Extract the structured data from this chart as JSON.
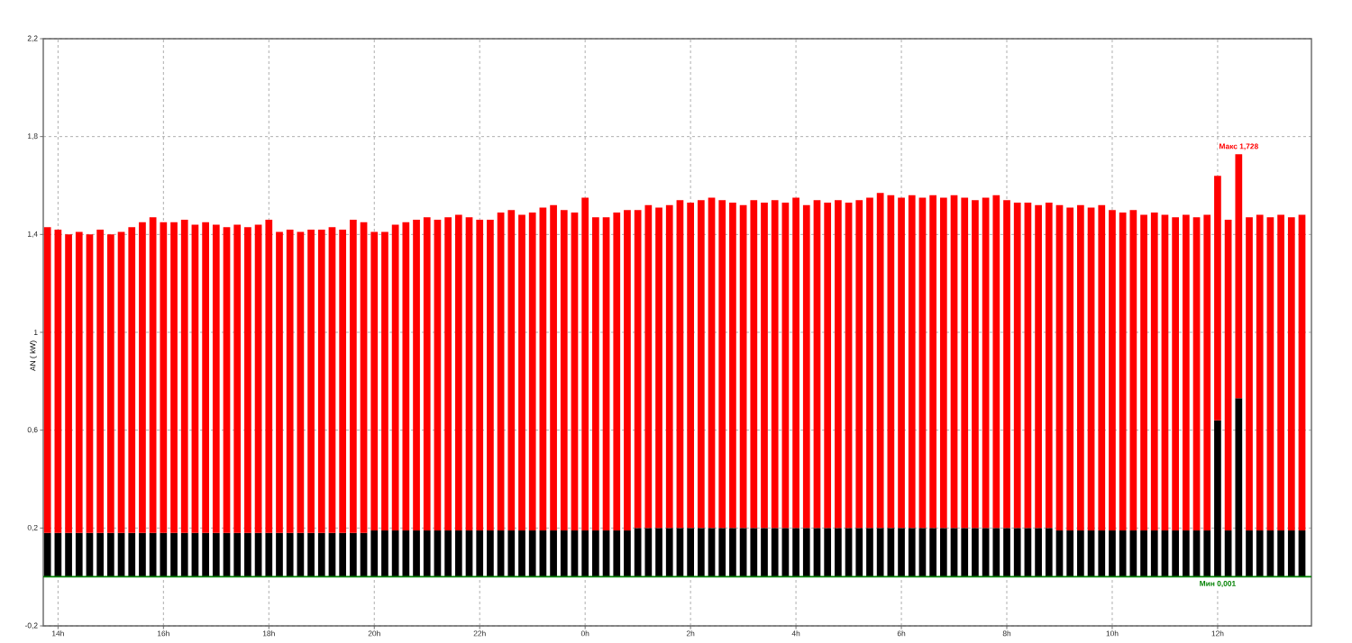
{
  "chart_data": {
    "type": "bar",
    "stacked": true,
    "ylabel": "AN ( kW)",
    "ylim": [
      -0.2,
      2.2
    ],
    "yticks": [
      {
        "value": -0.2,
        "label": "-0,2"
      },
      {
        "value": 0.2,
        "label": "0,2"
      },
      {
        "value": 0.6,
        "label": "0,6"
      },
      1,
      {
        "value": 1.4,
        "label": "1,4"
      },
      {
        "value": 1.8,
        "label": "1,8"
      },
      {
        "value": 2.2,
        "label": "2,2"
      }
    ],
    "grid": true,
    "categories": [
      null,
      "14h",
      null,
      null,
      null,
      null,
      null,
      null,
      null,
      null,
      null,
      "16h",
      null,
      null,
      null,
      null,
      null,
      null,
      null,
      null,
      null,
      "18h",
      null,
      null,
      null,
      null,
      null,
      null,
      null,
      null,
      null,
      "20h",
      null,
      null,
      null,
      null,
      null,
      null,
      null,
      null,
      null,
      "22h",
      null,
      null,
      null,
      null,
      null,
      null,
      null,
      null,
      null,
      "0h",
      null,
      null,
      null,
      null,
      null,
      null,
      null,
      null,
      null,
      "2h",
      null,
      null,
      null,
      null,
      null,
      null,
      null,
      null,
      null,
      "4h",
      null,
      null,
      null,
      null,
      null,
      null,
      null,
      null,
      null,
      "6h",
      null,
      null,
      null,
      null,
      null,
      null,
      null,
      null,
      null,
      "8h",
      null,
      null,
      null,
      null,
      null,
      null,
      null,
      null,
      null,
      "10h",
      null,
      null,
      null,
      null,
      null,
      null,
      null,
      null,
      null,
      "12h",
      null,
      null,
      null,
      null,
      null,
      null,
      null,
      null
    ],
    "series": [
      {
        "color": "#000000",
        "values": [
          0.18,
          0.18,
          0.18,
          0.18,
          0.18,
          0.18,
          0.18,
          0.18,
          0.18,
          0.18,
          0.18,
          0.18,
          0.18,
          0.18,
          0.18,
          0.18,
          0.18,
          0.18,
          0.18,
          0.18,
          0.18,
          0.18,
          0.18,
          0.18,
          0.18,
          0.18,
          0.18,
          0.18,
          0.18,
          0.18,
          0.18,
          0.19,
          0.19,
          0.19,
          0.19,
          0.19,
          0.19,
          0.19,
          0.19,
          0.19,
          0.19,
          0.19,
          0.19,
          0.19,
          0.19,
          0.19,
          0.19,
          0.19,
          0.19,
          0.19,
          0.19,
          0.19,
          0.19,
          0.19,
          0.19,
          0.19,
          0.2,
          0.2,
          0.2,
          0.2,
          0.2,
          0.2,
          0.2,
          0.2,
          0.2,
          0.2,
          0.2,
          0.2,
          0.2,
          0.2,
          0.2,
          0.2,
          0.2,
          0.2,
          0.2,
          0.2,
          0.2,
          0.2,
          0.2,
          0.2,
          0.2,
          0.2,
          0.2,
          0.2,
          0.2,
          0.2,
          0.2,
          0.2,
          0.2,
          0.2,
          0.2,
          0.2,
          0.2,
          0.2,
          0.2,
          0.2,
          0.19,
          0.19,
          0.19,
          0.19,
          0.19,
          0.19,
          0.19,
          0.19,
          0.19,
          0.19,
          0.19,
          0.19,
          0.19,
          0.19,
          0.19,
          0.64,
          0.19,
          0.73,
          0.19,
          0.19,
          0.19,
          0.19,
          0.19,
          0.19
        ]
      },
      {
        "color": "#ff0000",
        "values": [
          1.25,
          1.24,
          1.22,
          1.23,
          1.22,
          1.24,
          1.22,
          1.23,
          1.25,
          1.27,
          1.29,
          1.27,
          1.27,
          1.28,
          1.26,
          1.27,
          1.26,
          1.25,
          1.26,
          1.25,
          1.26,
          1.28,
          1.23,
          1.24,
          1.23,
          1.24,
          1.24,
          1.25,
          1.24,
          1.28,
          1.27,
          1.22,
          1.22,
          1.25,
          1.26,
          1.27,
          1.28,
          1.27,
          1.28,
          1.29,
          1.28,
          1.27,
          1.27,
          1.3,
          1.31,
          1.29,
          1.3,
          1.32,
          1.33,
          1.31,
          1.3,
          1.36,
          1.28,
          1.28,
          1.3,
          1.31,
          1.3,
          1.32,
          1.31,
          1.32,
          1.34,
          1.33,
          1.34,
          1.35,
          1.34,
          1.33,
          1.32,
          1.34,
          1.33,
          1.34,
          1.33,
          1.35,
          1.32,
          1.34,
          1.33,
          1.34,
          1.33,
          1.34,
          1.35,
          1.37,
          1.36,
          1.35,
          1.36,
          1.35,
          1.36,
          1.35,
          1.36,
          1.35,
          1.34,
          1.35,
          1.36,
          1.34,
          1.33,
          1.33,
          1.32,
          1.33,
          1.33,
          1.32,
          1.33,
          1.32,
          1.33,
          1.31,
          1.3,
          1.31,
          1.29,
          1.3,
          1.29,
          1.28,
          1.29,
          1.28,
          1.29,
          1.0,
          1.27,
          0.998,
          1.28,
          1.29,
          1.28,
          1.29,
          1.28,
          1.29
        ]
      }
    ],
    "ref_lines": [
      {
        "axis": "y",
        "value": 0.001,
        "color": "#008000"
      }
    ],
    "annotations": [
      {
        "text": "**Макс 1,728**",
        "y": 1.728
      },
      {
        "text": "**Мин 0,001**",
        "x": "12h",
        "y": 0.001
      }
    ]
  }
}
